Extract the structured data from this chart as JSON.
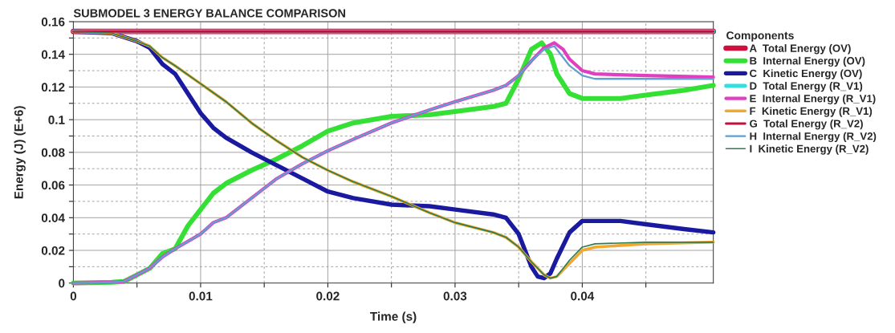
{
  "chart_data": {
    "type": "line",
    "title": "SUBMODEL 3 ENERGY BALANCE COMPARISON",
    "xlabel": "Time (s)",
    "ylabel": "Energy (J) (E+6)",
    "legend_title": "Components",
    "legend": "right",
    "grid": true,
    "marker": "none",
    "line_style": "solid",
    "xlim": [
      0,
      0.0503
    ],
    "ylim": [
      0,
      0.16
    ],
    "xticks": [
      0,
      {
        "value": 0.005,
        "label": null
      },
      0.01,
      {
        "value": 0.015,
        "label": null
      },
      0.02,
      {
        "value": 0.025,
        "label": null
      },
      0.03,
      {
        "value": 0.035,
        "label": null
      },
      0.04,
      {
        "value": 0.045,
        "label": null
      }
    ],
    "yticks": [
      0,
      {
        "value": 0.01,
        "label": null
      },
      0.02,
      {
        "value": 0.03,
        "label": null
      },
      0.04,
      {
        "value": 0.05,
        "label": null
      },
      0.06,
      {
        "value": 0.07,
        "label": null
      },
      0.08,
      {
        "value": 0.09,
        "label": null
      },
      0.1,
      {
        "value": 0.11,
        "label": null
      },
      0.12,
      {
        "value": 0.13,
        "label": null
      },
      0.14,
      {
        "value": 0.15,
        "label": null
      },
      0.16
    ],
    "series": [
      {
        "name": "A  Total Energy (OV)",
        "color": "#d0103a",
        "x": [
          0,
          0.0503
        ],
        "values": [
          0.154,
          0.154
        ]
      },
      {
        "name": "B  Internal Energy (OV)",
        "color": "#33e033",
        "x": [
          0,
          0.003,
          0.004,
          0.005,
          0.006,
          0.007,
          0.008,
          0.009,
          0.01,
          0.011,
          0.012,
          0.014,
          0.016,
          0.018,
          0.02,
          0.022,
          0.025,
          0.028,
          0.03,
          0.033,
          0.034,
          0.035,
          0.036,
          0.0368,
          0.0375,
          0.038,
          0.039,
          0.04,
          0.043,
          0.045,
          0.048,
          0.0503
        ],
        "values": [
          0,
          0.0005,
          0.001,
          0.005,
          0.009,
          0.018,
          0.021,
          0.035,
          0.045,
          0.055,
          0.061,
          0.069,
          0.076,
          0.084,
          0.093,
          0.098,
          0.102,
          0.103,
          0.105,
          0.108,
          0.11,
          0.125,
          0.143,
          0.147,
          0.14,
          0.128,
          0.116,
          0.113,
          0.113,
          0.115,
          0.118,
          0.121
        ]
      },
      {
        "name": "C  Kinetic Energy (OV)",
        "color": "#1a1aa0",
        "x": [
          0,
          0.003,
          0.005,
          0.006,
          0.007,
          0.008,
          0.009,
          0.01,
          0.011,
          0.012,
          0.014,
          0.016,
          0.018,
          0.02,
          0.022,
          0.025,
          0.028,
          0.03,
          0.033,
          0.034,
          0.035,
          0.036,
          0.0365,
          0.037,
          0.0375,
          0.038,
          0.039,
          0.04,
          0.043,
          0.045,
          0.048,
          0.0503
        ],
        "values": [
          0.154,
          0.153,
          0.148,
          0.144,
          0.134,
          0.128,
          0.116,
          0.104,
          0.095,
          0.089,
          0.08,
          0.072,
          0.064,
          0.056,
          0.052,
          0.048,
          0.047,
          0.045,
          0.042,
          0.04,
          0.03,
          0.01,
          0.004,
          0.003,
          0.006,
          0.015,
          0.031,
          0.038,
          0.038,
          0.036,
          0.033,
          0.031
        ]
      },
      {
        "name": "D  Total Energy (R_V1)",
        "color": "#33e0e0",
        "x": [
          0,
          0.0503
        ],
        "values": [
          0.154,
          0.154
        ]
      },
      {
        "name": "E  Internal Energy (R_V1)",
        "color": "#e040c0",
        "x": [
          0,
          0.003,
          0.004,
          0.005,
          0.006,
          0.007,
          0.008,
          0.01,
          0.011,
          0.012,
          0.014,
          0.015,
          0.016,
          0.018,
          0.02,
          0.022,
          0.025,
          0.028,
          0.03,
          0.033,
          0.034,
          0.035,
          0.036,
          0.037,
          0.0378,
          0.0385,
          0.039,
          0.04,
          0.041,
          0.045,
          0.0503
        ],
        "values": [
          0,
          0.0005,
          0.001,
          0.005,
          0.009,
          0.016,
          0.021,
          0.03,
          0.037,
          0.04,
          0.052,
          0.058,
          0.064,
          0.073,
          0.081,
          0.088,
          0.098,
          0.106,
          0.111,
          0.118,
          0.121,
          0.127,
          0.136,
          0.144,
          0.147,
          0.143,
          0.137,
          0.13,
          0.128,
          0.127,
          0.126
        ]
      },
      {
        "name": "F  Kinetic Energy (R_V1)",
        "color": "#f0a830",
        "x": [
          0,
          0.003,
          0.005,
          0.006,
          0.007,
          0.008,
          0.01,
          0.012,
          0.014,
          0.016,
          0.018,
          0.02,
          0.022,
          0.025,
          0.028,
          0.03,
          0.033,
          0.034,
          0.035,
          0.036,
          0.037,
          0.0375,
          0.038,
          0.039,
          0.04,
          0.041,
          0.045,
          0.0503
        ],
        "values": [
          0.154,
          0.153,
          0.148,
          0.145,
          0.138,
          0.133,
          0.122,
          0.111,
          0.098,
          0.087,
          0.077,
          0.069,
          0.062,
          0.053,
          0.043,
          0.037,
          0.031,
          0.028,
          0.022,
          0.013,
          0.005,
          0.003,
          0.004,
          0.012,
          0.02,
          0.022,
          0.024,
          0.025
        ]
      },
      {
        "name": "G  Total Energy (R_V2)",
        "color": "#c01040",
        "x": [
          0,
          0.0503
        ],
        "values": [
          0.154,
          0.154
        ]
      },
      {
        "name": "H  Internal Energy (R_V2)",
        "color": "#5fa0d0",
        "x": [
          0,
          0.003,
          0.004,
          0.005,
          0.006,
          0.007,
          0.008,
          0.01,
          0.011,
          0.012,
          0.014,
          0.015,
          0.016,
          0.018,
          0.02,
          0.022,
          0.025,
          0.028,
          0.03,
          0.033,
          0.034,
          0.035,
          0.036,
          0.037,
          0.0378,
          0.039,
          0.04,
          0.041,
          0.045,
          0.0503
        ],
        "values": [
          0,
          0.0005,
          0.001,
          0.005,
          0.009,
          0.016,
          0.021,
          0.03,
          0.037,
          0.04,
          0.052,
          0.058,
          0.064,
          0.073,
          0.081,
          0.088,
          0.098,
          0.106,
          0.111,
          0.118,
          0.121,
          0.127,
          0.136,
          0.143,
          0.145,
          0.133,
          0.127,
          0.125,
          0.125,
          0.125
        ]
      },
      {
        "name": "I  Kinetic Energy (R_V2)",
        "color": "#2e7d50",
        "x": [
          0,
          0.003,
          0.005,
          0.006,
          0.007,
          0.008,
          0.01,
          0.012,
          0.014,
          0.016,
          0.018,
          0.02,
          0.022,
          0.025,
          0.028,
          0.03,
          0.033,
          0.034,
          0.035,
          0.036,
          0.037,
          0.0375,
          0.038,
          0.039,
          0.04,
          0.041,
          0.045,
          0.0503
        ],
        "values": [
          0.154,
          0.153,
          0.148,
          0.145,
          0.138,
          0.133,
          0.122,
          0.111,
          0.098,
          0.087,
          0.077,
          0.069,
          0.062,
          0.053,
          0.043,
          0.037,
          0.031,
          0.028,
          0.022,
          0.013,
          0.005,
          0.003,
          0.004,
          0.014,
          0.022,
          0.024,
          0.025,
          0.025
        ]
      }
    ]
  }
}
